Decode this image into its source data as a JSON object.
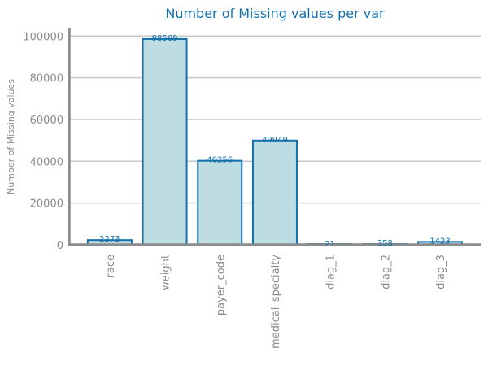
{
  "colors": {
    "bar_fill": "#bedde3",
    "bar_stroke": "#1470ab",
    "title": "#1470ab",
    "tick_text": "#8c8c8c",
    "axis": "#8c8c8c",
    "grid": "#c8c8c8",
    "value_label": "#1470ab"
  },
  "chart_data": {
    "type": "bar",
    "title": "Number of Missing values per var",
    "xlabel": "",
    "ylabel": "Number of Missing values",
    "categories": [
      "race",
      "weight",
      "payer_code",
      "medical_specialty",
      "diag_1",
      "diag_2",
      "diag_3"
    ],
    "values": [
      2273,
      98569,
      40256,
      49949,
      21,
      358,
      1423
    ],
    "value_labels": [
      "2273",
      "98569",
      "40256",
      "49949",
      "21",
      "358",
      "1423"
    ],
    "ylim": [
      0,
      104000
    ],
    "yticks": [
      0,
      20000,
      40000,
      60000,
      80000,
      100000
    ],
    "ytick_labels": [
      "0",
      "20000",
      "40000",
      "60000",
      "80000",
      "100000"
    ],
    "grid": true,
    "legend": "none"
  }
}
